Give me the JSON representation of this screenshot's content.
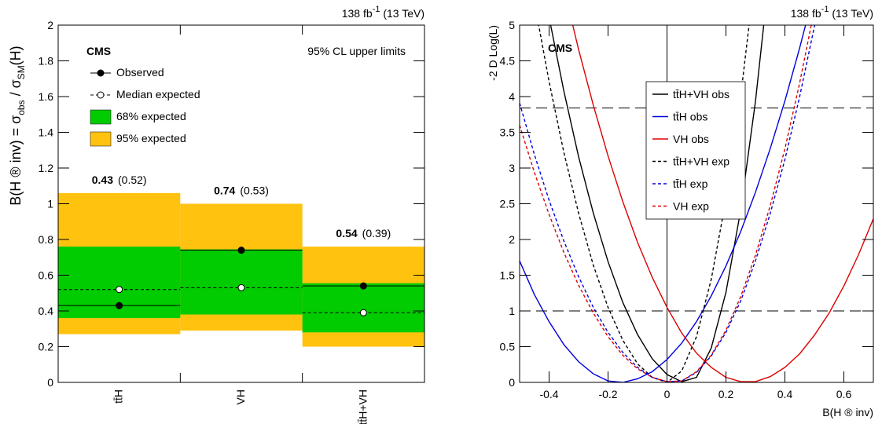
{
  "chart_data": [
    {
      "type": "limits",
      "lumi": [
        "138 fb",
        "-1",
        " (13 TeV)"
      ],
      "brand": "CMS",
      "subtitle": "95% CL upper limits",
      "ylabel": [
        "B(H ® inv) = σ",
        "obs",
        " / σ",
        "SM",
        "(H)"
      ],
      "categories": [
        "tt̄H",
        "VH",
        "tt̄H+VH"
      ],
      "ylim": [
        0,
        2
      ],
      "yticks": [
        0,
        0.2,
        0.4,
        0.6,
        0.8,
        1,
        1.2,
        1.4,
        1.6,
        1.8,
        2
      ],
      "series": [
        {
          "name": "Observed",
          "color": "#000000",
          "style": "solid",
          "marker": "filled",
          "values": [
            0.43,
            0.74,
            0.54
          ]
        },
        {
          "name": "Median expected",
          "color": "#000000",
          "style": "dashed",
          "marker": "open",
          "values": [
            0.52,
            0.53,
            0.39
          ],
          "value_labels": [
            "(0.52)",
            "(0.53)",
            "(0.39)"
          ]
        }
      ],
      "bands": [
        {
          "name": "68% expected",
          "color": "#00cc00",
          "low": [
            0.36,
            0.38,
            0.28
          ],
          "high": [
            0.76,
            0.745,
            0.555
          ]
        },
        {
          "name": "95% expected",
          "color": "#ffc20e",
          "low": [
            0.27,
            0.29,
            0.2
          ],
          "high": [
            1.06,
            1.0,
            0.76
          ]
        }
      ]
    },
    {
      "type": "line",
      "lumi": [
        "138 fb",
        "-1",
        " (13 TeV)"
      ],
      "brand": "CMS",
      "ylabel": "-2 D Log(L)",
      "xlabel": "B(H ® inv)",
      "xlim": [
        -0.5,
        0.7
      ],
      "ylim": [
        0,
        5
      ],
      "xticks": [
        -0.4,
        -0.2,
        0,
        0.2,
        0.4,
        0.6
      ],
      "yticks": [
        0,
        0.5,
        1,
        1.5,
        2,
        2.5,
        3,
        3.5,
        4,
        4.5,
        5
      ],
      "hlines": [
        1,
        3.84
      ],
      "vlines": [
        0
      ],
      "x": [
        -0.5,
        -0.45,
        -0.4,
        -0.35,
        -0.3,
        -0.25,
        -0.2,
        -0.15,
        -0.1,
        -0.05,
        0,
        0.05,
        0.1,
        0.15,
        0.2,
        0.25,
        0.3,
        0.35,
        0.4,
        0.45,
        0.5,
        0.55,
        0.6,
        0.65,
        0.7
      ],
      "series": [
        {
          "name": "tt̄H+VH obs",
          "color": "#000000",
          "style": "solid",
          "values": [
            null,
            null,
            5.11,
            4.08,
            3.16,
            2.37,
            1.69,
            1.12,
            0.67,
            0.33,
            0.11,
            0.01,
            0.07,
            0.48,
            1.26,
            2.41,
            3.93,
            5.83,
            null,
            null,
            null,
            null,
            null,
            null,
            null
          ]
        },
        {
          "name": "tt̄H obs",
          "color": "#0000dd",
          "style": "solid",
          "values": [
            1.7,
            1.23,
            0.85,
            0.53,
            0.29,
            0.12,
            0.02,
            0.0,
            0.05,
            0.15,
            0.32,
            0.55,
            0.85,
            1.21,
            1.63,
            2.11,
            2.66,
            3.27,
            3.94,
            4.68,
            5.48,
            null,
            null,
            null,
            null
          ]
        },
        {
          "name": "VH obs",
          "color": "#dd0000",
          "style": "solid",
          "values": [
            null,
            null,
            null,
            5.52,
            4.66,
            3.88,
            3.17,
            2.53,
            1.96,
            1.47,
            1.05,
            0.69,
            0.41,
            0.21,
            0.07,
            0.01,
            0.01,
            0.08,
            0.21,
            0.4,
            0.66,
            0.97,
            1.35,
            1.79,
            2.29
          ]
        },
        {
          "name": "tt̄H+VH exp",
          "color": "#000000",
          "style": "dashed",
          "values": [
            null,
            5.33,
            4.21,
            3.22,
            2.37,
            1.64,
            1.05,
            0.59,
            0.26,
            0.07,
            0,
            0.16,
            0.64,
            1.44,
            2.56,
            4.0,
            5.76,
            null,
            null,
            null,
            null,
            null,
            null,
            null,
            null
          ]
        },
        {
          "name": "tt̄H exp",
          "color": "#0000dd",
          "style": "dashed",
          "values": [
            3.91,
            3.19,
            2.55,
            1.98,
            1.48,
            1.05,
            0.7,
            0.42,
            0.21,
            0.07,
            0.01,
            0.02,
            0.14,
            0.37,
            0.7,
            1.14,
            1.7,
            2.36,
            3.12,
            4.0,
            4.98,
            6.08,
            null,
            null,
            null
          ]
        },
        {
          "name": "VH exp",
          "color": "#dd0000",
          "style": "dashed",
          "values": [
            3.6,
            2.94,
            2.35,
            1.82,
            1.36,
            0.97,
            0.64,
            0.38,
            0.19,
            0.07,
            0.01,
            0.02,
            0.15,
            0.38,
            0.73,
            1.2,
            1.78,
            2.47,
            3.27,
            4.19,
            5.22,
            null,
            null,
            null,
            null
          ]
        }
      ]
    }
  ]
}
